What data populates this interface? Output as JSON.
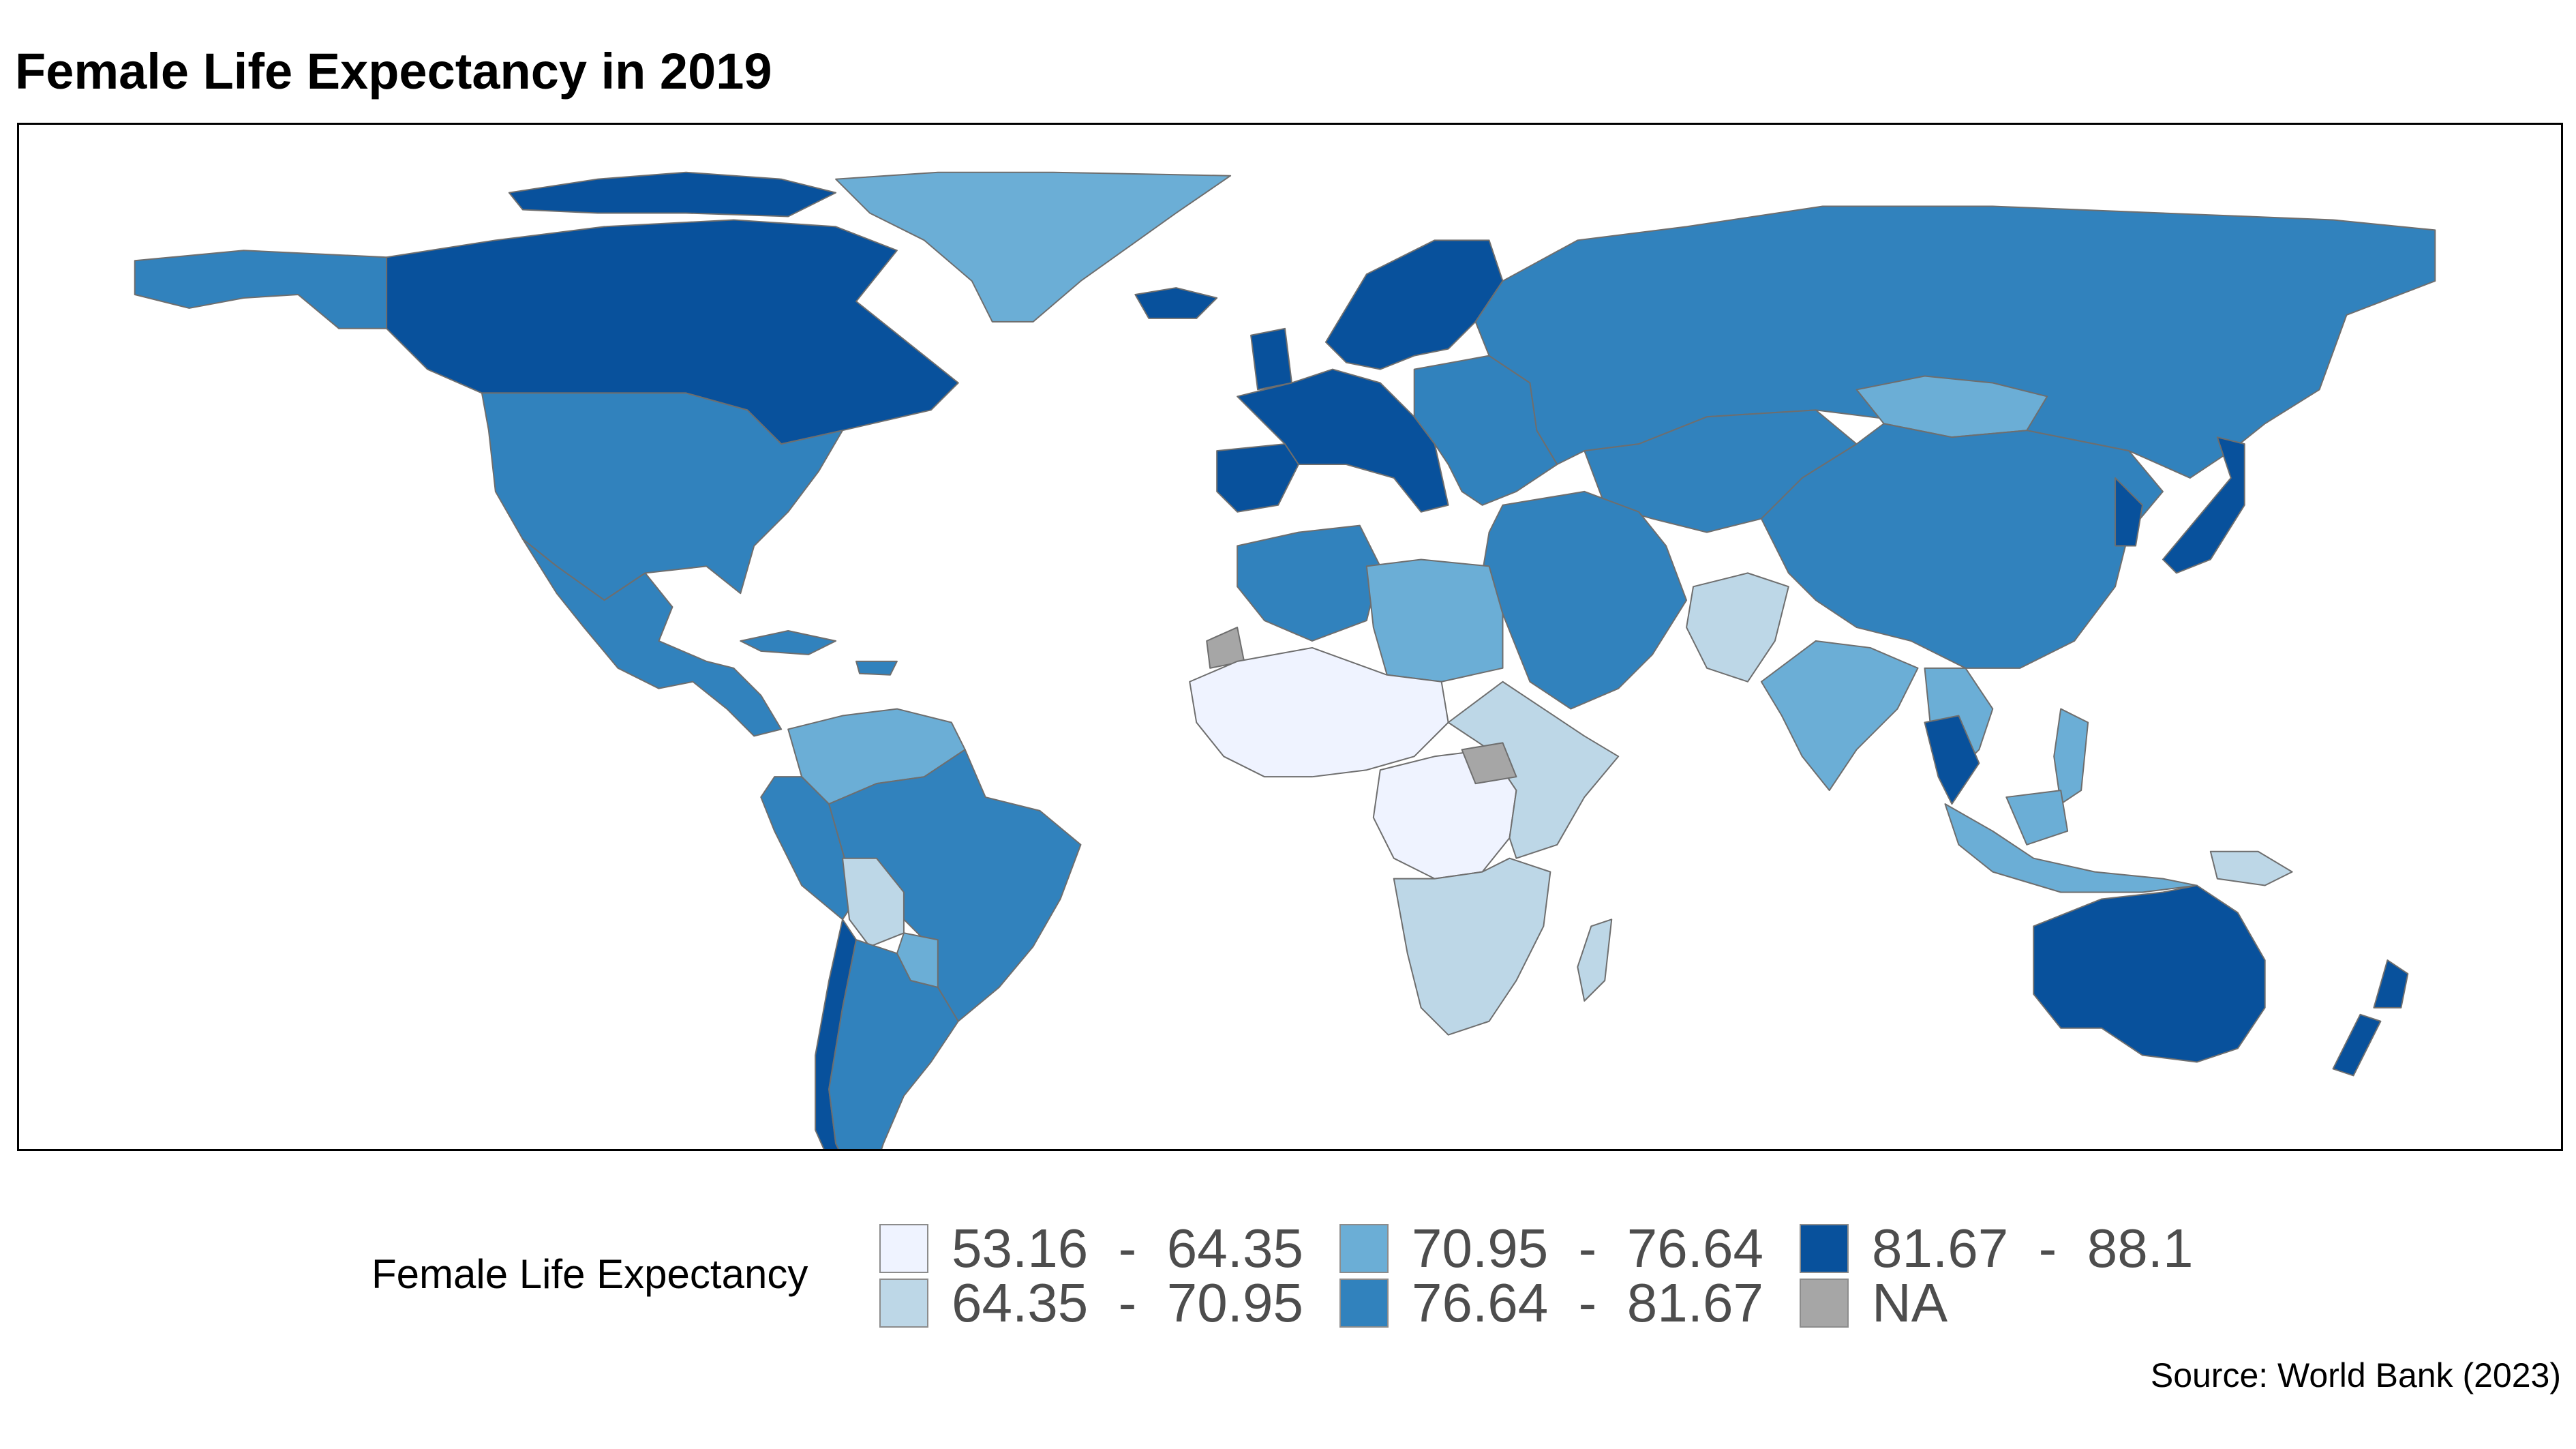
{
  "title": "Female Life Expectancy in 2019",
  "source": "Source: World Bank (2023)",
  "legend": {
    "title": "Female Life Expectancy",
    "items": [
      {
        "label": "53.16  -  64.35",
        "color": "#eff3ff"
      },
      {
        "label": "64.35  -  70.95",
        "color": "#bdd7e7"
      },
      {
        "label": "70.95  -  76.64",
        "color": "#6baed6"
      },
      {
        "label": "76.64  -  81.67",
        "color": "#3182bd"
      },
      {
        "label": "81.67  -  88.1",
        "color": "#08519c"
      },
      {
        "label": "NA",
        "color": "#a6a6a6"
      }
    ]
  },
  "map_data": {
    "type": "choropleth",
    "variable": "Female Life Expectancy",
    "year": 2019,
    "class_breaks": [
      53.16,
      64.35,
      70.95,
      76.64,
      81.67,
      88.1
    ],
    "regions": [
      {
        "region": "Canada",
        "class": 4
      },
      {
        "region": "Alaska (USA)",
        "class": 3
      },
      {
        "region": "Greenland",
        "class": 2
      },
      {
        "region": "United States",
        "class": 3
      },
      {
        "region": "Mexico & Central America",
        "class": 3
      },
      {
        "region": "Caribbean",
        "class": 3
      },
      {
        "region": "Colombia & Venezuela",
        "class": 2
      },
      {
        "region": "Brazil",
        "class": 3
      },
      {
        "region": "Peru & Ecuador",
        "class": 3
      },
      {
        "region": "Bolivia",
        "class": 1
      },
      {
        "region": "Paraguay",
        "class": 2
      },
      {
        "region": "Argentina",
        "class": 3
      },
      {
        "region": "Chile",
        "class": 4
      },
      {
        "region": "Western Europe",
        "class": 4
      },
      {
        "region": "Iberia",
        "class": 4
      },
      {
        "region": "Scandinavia",
        "class": 4
      },
      {
        "region": "Iceland",
        "class": 4
      },
      {
        "region": "Eastern Europe",
        "class": 3
      },
      {
        "region": "Russia",
        "class": 3
      },
      {
        "region": "Central Asia",
        "class": 3
      },
      {
        "region": "Mongolia",
        "class": 2
      },
      {
        "region": "China",
        "class": 3
      },
      {
        "region": "Korea & Japan",
        "class": 4
      },
      {
        "region": "Middle East",
        "class": 3
      },
      {
        "region": "Egypt & Libya",
        "class": 2
      },
      {
        "region": "Maghreb",
        "class": 3
      },
      {
        "region": "Western Sahara",
        "class": 5
      },
      {
        "region": "Afghanistan & Pakistan",
        "class": 1
      },
      {
        "region": "India",
        "class": 2
      },
      {
        "region": "Southeast Asia",
        "class": 2
      },
      {
        "region": "Thailand",
        "class": 4
      },
      {
        "region": "Indonesia",
        "class": 2
      },
      {
        "region": "Papua New Guinea",
        "class": 1
      },
      {
        "region": "Sahel & West Africa",
        "class": 0
      },
      {
        "region": "Central Africa",
        "class": 0
      },
      {
        "region": "East Africa",
        "class": 1
      },
      {
        "region": "South Sudan",
        "class": 5
      },
      {
        "region": "Southern Africa",
        "class": 1
      },
      {
        "region": "Madagascar",
        "class": 1
      },
      {
        "region": "Australia",
        "class": 4
      },
      {
        "region": "New Zealand",
        "class": 4
      }
    ]
  }
}
